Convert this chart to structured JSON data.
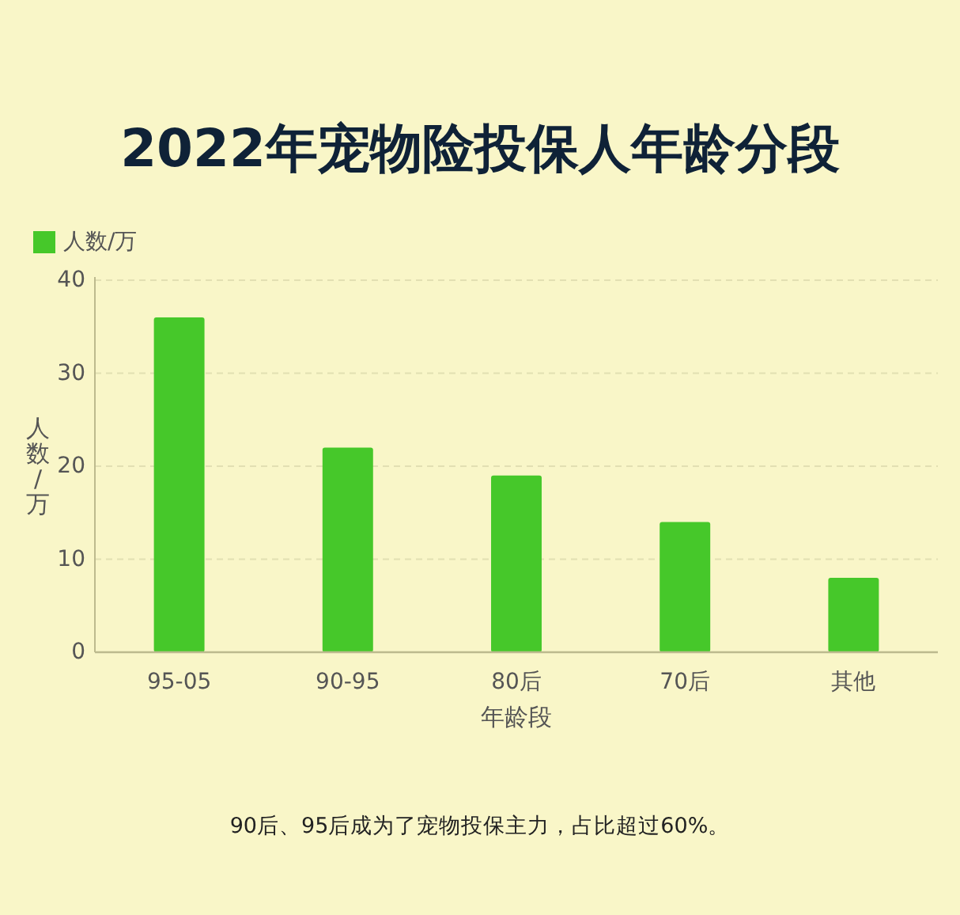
{
  "chart_data": {
    "type": "bar",
    "title": "2022年宠物险投保人年龄分段",
    "xlabel": "年龄段",
    "ylabel": "人数/万",
    "categories": [
      "95-05",
      "90-95",
      "80后",
      "70后",
      "其他"
    ],
    "series": [
      {
        "name": "人数/万",
        "color": "#46c82a",
        "values": [
          36,
          22,
          19,
          14,
          8
        ]
      }
    ],
    "ylim": [
      0,
      40
    ],
    "yticks": [
      0,
      10,
      20,
      30,
      40
    ],
    "grid": "y",
    "legend": "top left",
    "annotations": [
      "90后、95后成为了宠物投保主力，占比超过60%。"
    ]
  }
}
